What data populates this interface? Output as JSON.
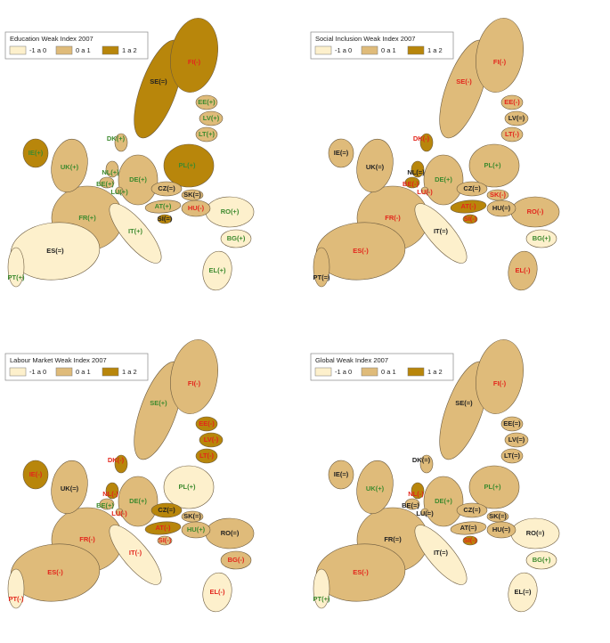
{
  "maps": [
    {
      "title": "Education Weak Index 2007",
      "legend": [
        {
          "label": "-1 a 0",
          "color": "#fdf0cc"
        },
        {
          "label": "0 a 1",
          "color": "#dfbb7a"
        },
        {
          "label": "1 a 2",
          "color": "#b8860b"
        }
      ],
      "countries": [
        {
          "label": "SE(=)",
          "fill": "#b8860b",
          "label_color": "#222222"
        },
        {
          "label": "FI(-)",
          "fill": "#b8860b",
          "label_color": "#e3261c"
        },
        {
          "label": "FR(+)",
          "fill": "#dfbb7a",
          "label_color": "#3d8a2e"
        },
        {
          "label": "ES(=)",
          "fill": "#fdf0cc",
          "label_color": "#222222"
        },
        {
          "label": "DE(+)",
          "fill": "#dfbb7a",
          "label_color": "#3d8a2e"
        },
        {
          "label": "PL(+)",
          "fill": "#b8860b",
          "label_color": "#3d8a2e"
        },
        {
          "label": "UK(+)",
          "fill": "#dfbb7a",
          "label_color": "#3d8a2e"
        },
        {
          "label": "IT(+)",
          "fill": "#fdf0cc",
          "label_color": "#3d8a2e"
        },
        {
          "label": "RO(+)",
          "fill": "#fdf0cc",
          "label_color": "#3d8a2e"
        },
        {
          "label": "EL(+)",
          "fill": "#fdf0cc",
          "label_color": "#3d8a2e"
        },
        {
          "label": "PT(+)",
          "fill": "#fdf0cc",
          "label_color": "#3d8a2e"
        },
        {
          "label": "IE(+)",
          "fill": "#b8860b",
          "label_color": "#3d8a2e"
        },
        {
          "label": "BG(+)",
          "fill": "#fdf0cc",
          "label_color": "#3d8a2e"
        },
        {
          "label": "HU(-)",
          "fill": "#dfbb7a",
          "label_color": "#e3261c"
        },
        {
          "label": "AT(+)",
          "fill": "#dfbb7a",
          "label_color": "#3d8a2e"
        },
        {
          "label": "CZ(=)",
          "fill": "#dfbb7a",
          "label_color": "#222222"
        },
        {
          "label": "SK(=)",
          "fill": "#dfbb7a",
          "label_color": "#222222"
        },
        {
          "label": "EE(+)",
          "fill": "#dfbb7a",
          "label_color": "#3d8a2e"
        },
        {
          "label": "LV(+)",
          "fill": "#dfbb7a",
          "label_color": "#3d8a2e"
        },
        {
          "label": "LT(+)",
          "fill": "#dfbb7a",
          "label_color": "#3d8a2e"
        },
        {
          "label": "DK(+)",
          "fill": "#dfbb7a",
          "label_color": "#3d8a2e"
        },
        {
          "label": "NL(+)",
          "fill": "#dfbb7a",
          "label_color": "#3d8a2e"
        },
        {
          "label": "BE(+)",
          "fill": "#dfbb7a",
          "label_color": "#3d8a2e"
        },
        {
          "label": "SI(=)",
          "fill": "#b8860b",
          "label_color": "#222222"
        },
        {
          "label": "LU(+)",
          "fill": "#dfbb7a",
          "label_color": "#3d8a2e"
        }
      ]
    },
    {
      "title": "Social Inclusion Weak Index 2007",
      "legend": [
        {
          "label": "-1 a 0",
          "color": "#fdf0cc"
        },
        {
          "label": "0 a 1",
          "color": "#dfbb7a"
        },
        {
          "label": "1 a 2",
          "color": "#b8860b"
        }
      ],
      "countries": [
        {
          "label": "SE(-)",
          "fill": "#dfbb7a",
          "label_color": "#e3261c"
        },
        {
          "label": "FI(-)",
          "fill": "#dfbb7a",
          "label_color": "#e3261c"
        },
        {
          "label": "FR(-)",
          "fill": "#dfbb7a",
          "label_color": "#e3261c"
        },
        {
          "label": "ES(-)",
          "fill": "#dfbb7a",
          "label_color": "#e3261c"
        },
        {
          "label": "DE(+)",
          "fill": "#dfbb7a",
          "label_color": "#3d8a2e"
        },
        {
          "label": "PL(+)",
          "fill": "#dfbb7a",
          "label_color": "#3d8a2e"
        },
        {
          "label": "UK(=)",
          "fill": "#dfbb7a",
          "label_color": "#222222"
        },
        {
          "label": "IT(=)",
          "fill": "#fdf0cc",
          "label_color": "#222222"
        },
        {
          "label": "RO(-)",
          "fill": "#dfbb7a",
          "label_color": "#e3261c"
        },
        {
          "label": "EL(-)",
          "fill": "#dfbb7a",
          "label_color": "#e3261c"
        },
        {
          "label": "PT(=)",
          "fill": "#dfbb7a",
          "label_color": "#222222"
        },
        {
          "label": "IE(=)",
          "fill": "#dfbb7a",
          "label_color": "#222222"
        },
        {
          "label": "BG(+)",
          "fill": "#fdf0cc",
          "label_color": "#3d8a2e"
        },
        {
          "label": "HU(=)",
          "fill": "#dfbb7a",
          "label_color": "#222222"
        },
        {
          "label": "AT(-)",
          "fill": "#b8860b",
          "label_color": "#e3261c"
        },
        {
          "label": "CZ(=)",
          "fill": "#dfbb7a",
          "label_color": "#222222"
        },
        {
          "label": "SK(-)",
          "fill": "#dfbb7a",
          "label_color": "#e3261c"
        },
        {
          "label": "EE(-)",
          "fill": "#dfbb7a",
          "label_color": "#e3261c"
        },
        {
          "label": "LV(=)",
          "fill": "#dfbb7a",
          "label_color": "#222222"
        },
        {
          "label": "LT(-)",
          "fill": "#dfbb7a",
          "label_color": "#e3261c"
        },
        {
          "label": "DK(-)",
          "fill": "#b8860b",
          "label_color": "#e3261c"
        },
        {
          "label": "NL(=)",
          "fill": "#b8860b",
          "label_color": "#222222"
        },
        {
          "label": "BE(-)",
          "fill": "#b8860b",
          "label_color": "#e3261c"
        },
        {
          "label": "SI(-)",
          "fill": "#b8860b",
          "label_color": "#e3261c"
        },
        {
          "label": "LU(-)",
          "fill": "#dfbb7a",
          "label_color": "#e3261c"
        }
      ]
    },
    {
      "title": "Labour Market Weak Index 2007",
      "legend": [
        {
          "label": "-1 a 0",
          "color": "#fdf0cc"
        },
        {
          "label": "0 a 1",
          "color": "#dfbb7a"
        },
        {
          "label": "1 a 2",
          "color": "#b8860b"
        }
      ],
      "countries": [
        {
          "label": "SE(+)",
          "fill": "#dfbb7a",
          "label_color": "#3d8a2e"
        },
        {
          "label": "FI(-)",
          "fill": "#dfbb7a",
          "label_color": "#e3261c"
        },
        {
          "label": "FR(-)",
          "fill": "#dfbb7a",
          "label_color": "#e3261c"
        },
        {
          "label": "ES(-)",
          "fill": "#dfbb7a",
          "label_color": "#e3261c"
        },
        {
          "label": "DE(+)",
          "fill": "#dfbb7a",
          "label_color": "#3d8a2e"
        },
        {
          "label": "PL(+)",
          "fill": "#fdf0cc",
          "label_color": "#3d8a2e"
        },
        {
          "label": "UK(=)",
          "fill": "#dfbb7a",
          "label_color": "#222222"
        },
        {
          "label": "IT(-)",
          "fill": "#fdf0cc",
          "label_color": "#e3261c"
        },
        {
          "label": "RO(=)",
          "fill": "#dfbb7a",
          "label_color": "#222222"
        },
        {
          "label": "EL(-)",
          "fill": "#fdf0cc",
          "label_color": "#e3261c"
        },
        {
          "label": "PT(-)",
          "fill": "#fdf0cc",
          "label_color": "#e3261c"
        },
        {
          "label": "IE(-)",
          "fill": "#b8860b",
          "label_color": "#e3261c"
        },
        {
          "label": "BG(-)",
          "fill": "#dfbb7a",
          "label_color": "#e3261c"
        },
        {
          "label": "HU(+)",
          "fill": "#dfbb7a",
          "label_color": "#3d8a2e"
        },
        {
          "label": "AT(-)",
          "fill": "#b8860b",
          "label_color": "#e3261c"
        },
        {
          "label": "CZ(=)",
          "fill": "#b8860b",
          "label_color": "#222222"
        },
        {
          "label": "SK(=)",
          "fill": "#dfbb7a",
          "label_color": "#222222"
        },
        {
          "label": "EE(-)",
          "fill": "#b8860b",
          "label_color": "#e3261c"
        },
        {
          "label": "LV(-)",
          "fill": "#b8860b",
          "label_color": "#e3261c"
        },
        {
          "label": "LT(-)",
          "fill": "#b8860b",
          "label_color": "#e3261c"
        },
        {
          "label": "DK(-)",
          "fill": "#b8860b",
          "label_color": "#e3261c"
        },
        {
          "label": "NL(-)",
          "fill": "#b8860b",
          "label_color": "#e3261c"
        },
        {
          "label": "BE(+)",
          "fill": "#dfbb7a",
          "label_color": "#3d8a2e"
        },
        {
          "label": "SI(-)",
          "fill": "#dfbb7a",
          "label_color": "#e3261c"
        },
        {
          "label": "LU(-)",
          "fill": "#dfbb7a",
          "label_color": "#e3261c"
        }
      ]
    },
    {
      "title": "Global Weak Index 2007",
      "legend": [
        {
          "label": "-1 a 0",
          "color": "#fdf0cc"
        },
        {
          "label": "0 a 1",
          "color": "#dfbb7a"
        },
        {
          "label": "1 a 2",
          "color": "#b8860b"
        }
      ],
      "countries": [
        {
          "label": "SE(=)",
          "fill": "#dfbb7a",
          "label_color": "#222222"
        },
        {
          "label": "FI(-)",
          "fill": "#dfbb7a",
          "label_color": "#e3261c"
        },
        {
          "label": "FR(=)",
          "fill": "#dfbb7a",
          "label_color": "#222222"
        },
        {
          "label": "ES(-)",
          "fill": "#dfbb7a",
          "label_color": "#e3261c"
        },
        {
          "label": "DE(+)",
          "fill": "#dfbb7a",
          "label_color": "#3d8a2e"
        },
        {
          "label": "PL(+)",
          "fill": "#dfbb7a",
          "label_color": "#3d8a2e"
        },
        {
          "label": "UK(+)",
          "fill": "#dfbb7a",
          "label_color": "#3d8a2e"
        },
        {
          "label": "IT(=)",
          "fill": "#fdf0cc",
          "label_color": "#222222"
        },
        {
          "label": "RO(=)",
          "fill": "#fdf0cc",
          "label_color": "#222222"
        },
        {
          "label": "EL(=)",
          "fill": "#fdf0cc",
          "label_color": "#222222"
        },
        {
          "label": "PT(+)",
          "fill": "#fdf0cc",
          "label_color": "#3d8a2e"
        },
        {
          "label": "IE(=)",
          "fill": "#dfbb7a",
          "label_color": "#222222"
        },
        {
          "label": "BG(+)",
          "fill": "#fdf0cc",
          "label_color": "#3d8a2e"
        },
        {
          "label": "HU(=)",
          "fill": "#dfbb7a",
          "label_color": "#222222"
        },
        {
          "label": "AT(=)",
          "fill": "#dfbb7a",
          "label_color": "#222222"
        },
        {
          "label": "CZ(=)",
          "fill": "#dfbb7a",
          "label_color": "#222222"
        },
        {
          "label": "SK(=)",
          "fill": "#dfbb7a",
          "label_color": "#222222"
        },
        {
          "label": "EE(=)",
          "fill": "#dfbb7a",
          "label_color": "#222222"
        },
        {
          "label": "LV(=)",
          "fill": "#dfbb7a",
          "label_color": "#222222"
        },
        {
          "label": "LT(=)",
          "fill": "#dfbb7a",
          "label_color": "#222222"
        },
        {
          "label": "DK(=)",
          "fill": "#dfbb7a",
          "label_color": "#222222"
        },
        {
          "label": "NL(-)",
          "fill": "#b8860b",
          "label_color": "#e3261c"
        },
        {
          "label": "BE(=)",
          "fill": "#dfbb7a",
          "label_color": "#222222"
        },
        {
          "label": "SI(-)",
          "fill": "#b8860b",
          "label_color": "#e3261c"
        },
        {
          "label": "LU(=)",
          "fill": "#dfbb7a",
          "label_color": "#222222"
        }
      ]
    }
  ]
}
